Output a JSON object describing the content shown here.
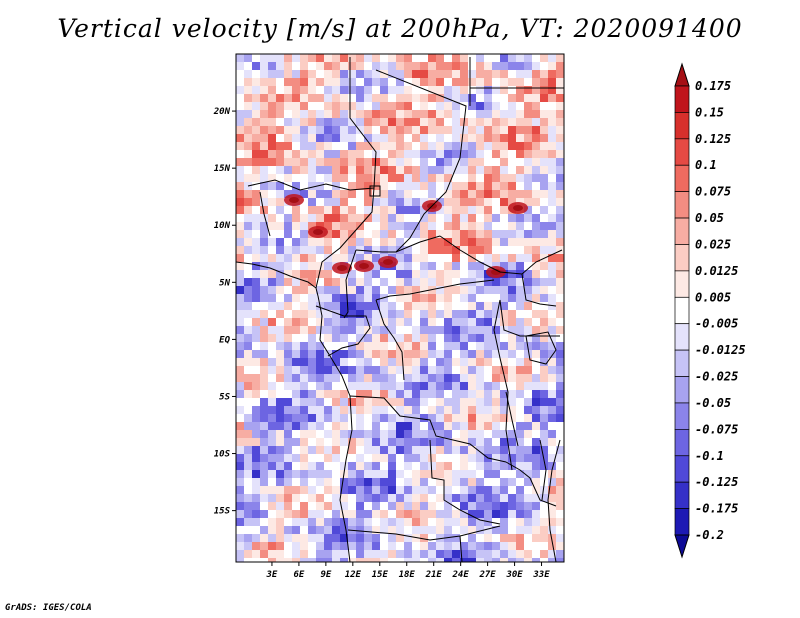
{
  "title": "Vertical velocity [m/s] at 200hPa, VT: 2020091400",
  "credit": "GrADS: IGES/COLA",
  "map": {
    "field": "vertical-velocity-200hPa",
    "lat_range": [
      -19.5,
      25
    ],
    "lon_range": [
      -1,
      35.5
    ],
    "lat_labels": [
      "20N",
      "15N",
      "10N",
      "5N",
      "EQ",
      "5S",
      "10S",
      "15S"
    ],
    "lat_values": [
      20,
      15,
      10,
      5,
      0,
      -5,
      -10,
      -15
    ],
    "lon_labels": [
      "3E",
      "6E",
      "9E",
      "12E",
      "15E",
      "18E",
      "21E",
      "24E",
      "27E",
      "30E",
      "33E"
    ],
    "lon_values": [
      3,
      6,
      9,
      12,
      15,
      18,
      21,
      24,
      27,
      30,
      33
    ]
  },
  "colorbar": {
    "labels": [
      "0.175",
      "0.15",
      "0.125",
      "0.1",
      "0.075",
      "0.05",
      "0.025",
      "0.0125",
      "0.005",
      "-0.005",
      "-0.0125",
      "-0.025",
      "-0.05",
      "-0.075",
      "-0.1",
      "-0.125",
      "-0.175",
      "-0.2"
    ],
    "colors": [
      "#a50f15",
      "#c0141c",
      "#d7302c",
      "#e54a44",
      "#ef6b60",
      "#f38d82",
      "#f7ada3",
      "#fbcdc4",
      "#fde9e4",
      "#ffffff",
      "#e4e2fb",
      "#c6c3f6",
      "#a8a3f0",
      "#8b84ea",
      "#6d65e2",
      "#5049d8",
      "#3530c8",
      "#1d19b4",
      "#0d0a96"
    ]
  }
}
